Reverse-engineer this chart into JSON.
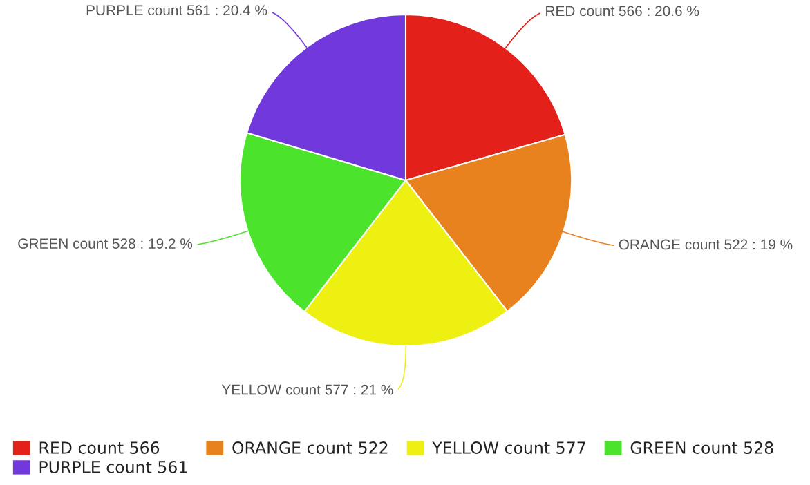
{
  "chart_data": {
    "type": "pie",
    "categories": [
      "RED count 566",
      "ORANGE count 522",
      "YELLOW count 577",
      "GREEN count 528",
      "PURPLE count 561"
    ],
    "values": [
      566,
      522,
      577,
      528,
      561
    ],
    "colors": [
      "#e3201a",
      "#e8821f",
      "#eef012",
      "#4be32b",
      "#7138db"
    ],
    "value_labels": [
      "RED count 566 : 20.6 %",
      "ORANGE count 522 : 19 %",
      "YELLOW count 577 : 21 %",
      "GREEN count 528 : 19.2 %",
      "PURPLE count 561 : 20.4 %"
    ],
    "legend": "bottom"
  }
}
